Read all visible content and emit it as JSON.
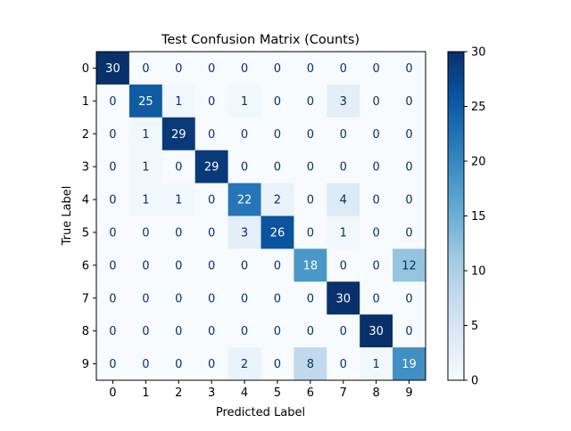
{
  "chart_data": {
    "type": "heatmap",
    "title": "Test Confusion Matrix (Counts)",
    "xlabel": "Predicted Label",
    "ylabel": "True Label",
    "x_categories": [
      "0",
      "1",
      "2",
      "3",
      "4",
      "5",
      "6",
      "7",
      "8",
      "9"
    ],
    "y_categories": [
      "0",
      "1",
      "2",
      "3",
      "4",
      "5",
      "6",
      "7",
      "8",
      "9"
    ],
    "values": [
      [
        30,
        0,
        0,
        0,
        0,
        0,
        0,
        0,
        0,
        0
      ],
      [
        0,
        25,
        1,
        0,
        1,
        0,
        0,
        3,
        0,
        0
      ],
      [
        0,
        1,
        29,
        0,
        0,
        0,
        0,
        0,
        0,
        0
      ],
      [
        0,
        1,
        0,
        29,
        0,
        0,
        0,
        0,
        0,
        0
      ],
      [
        0,
        1,
        1,
        0,
        22,
        2,
        0,
        4,
        0,
        0
      ],
      [
        0,
        0,
        0,
        0,
        3,
        26,
        0,
        1,
        0,
        0
      ],
      [
        0,
        0,
        0,
        0,
        0,
        0,
        18,
        0,
        0,
        12
      ],
      [
        0,
        0,
        0,
        0,
        0,
        0,
        0,
        30,
        0,
        0
      ],
      [
        0,
        0,
        0,
        0,
        0,
        0,
        0,
        0,
        30,
        0
      ],
      [
        0,
        0,
        0,
        0,
        2,
        0,
        8,
        0,
        1,
        19
      ]
    ],
    "colormap": "Blues",
    "value_range": [
      0,
      30
    ],
    "colorbar_ticks": [
      0,
      5,
      10,
      15,
      20,
      25,
      30
    ],
    "grid": false,
    "colorbar": "right"
  }
}
